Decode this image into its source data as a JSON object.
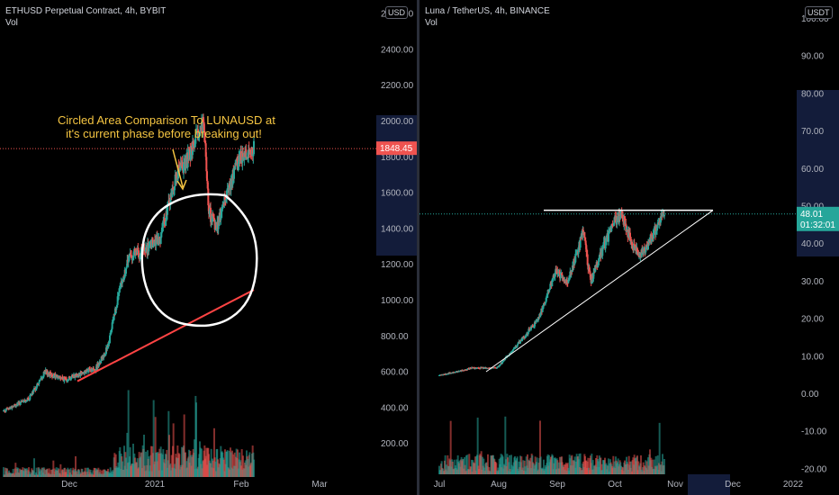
{
  "panels": [
    {
      "symbol_line": "ETHUSD Perpetual Contract, 4h, BYBIT",
      "volume_label": "Vol",
      "currency": "USD",
      "annotation_lines": [
        "Circled Area Comparison To LUNAUSD at",
        "it's current phase before breaking out!"
      ],
      "colors": {
        "annotation": "#f5c542",
        "trendline": "#ff4444",
        "circle": "#ffffff",
        "up": "#26a69a",
        "down": "#ef5350"
      }
    },
    {
      "symbol_line": "Luna / TetherUS, 4h, BINANCE",
      "volume_label": "Vol",
      "currency": "USDT",
      "colors": {
        "resistance": "#ffffff",
        "support": "#ffffff",
        "up": "#26a69a",
        "down": "#ef5350"
      }
    }
  ],
  "chart_data": [
    {
      "type": "candlestick",
      "title": "ETHUSD Perpetual Contract, 4h, BYBIT",
      "y_tick_labels": [
        "200.00",
        "400.00",
        "600.00",
        "800.00",
        "1000.00",
        "1200.00",
        "1400.00",
        "1600.00",
        "1800.00",
        "2000.00",
        "2200.00",
        "2400.00",
        "2600.00"
      ],
      "x_tick_labels": [
        "Dec",
        "2021",
        "Feb",
        "Mar"
      ],
      "ylim": [
        0,
        2700
      ],
      "last_price": 1848.45,
      "last_price_label": "1848.45",
      "close_path": [
        {
          "date": "2020-11-01",
          "close": 385
        },
        {
          "date": "2020-11-15",
          "close": 450
        },
        {
          "date": "2020-11-24",
          "close": 600
        },
        {
          "date": "2020-12-05",
          "close": 560
        },
        {
          "date": "2020-12-15",
          "close": 600
        },
        {
          "date": "2020-12-22",
          "close": 620
        },
        {
          "date": "2020-12-29",
          "close": 740
        },
        {
          "date": "2021-01-03",
          "close": 1000
        },
        {
          "date": "2021-01-10",
          "close": 1250
        },
        {
          "date": "2021-01-19",
          "close": 1280
        },
        {
          "date": "2021-01-27",
          "close": 1350
        },
        {
          "date": "2021-02-05",
          "close": 1700
        },
        {
          "date": "2021-02-12",
          "close": 1800
        },
        {
          "date": "2021-02-20",
          "close": 2000
        },
        {
          "date": "2021-02-23",
          "close": 1500
        },
        {
          "date": "2021-02-27",
          "close": 1400
        },
        {
          "date": "2021-03-05",
          "close": 1600
        },
        {
          "date": "2021-03-12",
          "close": 1800
        },
        {
          "date": "2021-03-20",
          "close": 1848.45
        }
      ],
      "trendline_from": {
        "date": "2020-12-12",
        "price": 550
      },
      "trendline_to": {
        "date": "2021-03-20",
        "price": 1060
      }
    },
    {
      "type": "candlestick",
      "title": "Luna / TetherUS, 4h, BINANCE",
      "y_tick_labels": [
        "-20.00",
        "-10.00",
        "0.00",
        "10.00",
        "20.00",
        "30.00",
        "40.00",
        "50.00",
        "60.00",
        "70.00",
        "80.00",
        "90.00",
        "100.00"
      ],
      "x_tick_labels": [
        "Jul",
        "Aug",
        "Sep",
        "Oct",
        "Nov",
        "Dec",
        "2022"
      ],
      "ylim": [
        -21,
        103
      ],
      "last_price": 48.01,
      "last_price_label": "48.01",
      "countdown": "01:32:01",
      "close_path": [
        {
          "date": "2021-07-01",
          "close": 5
        },
        {
          "date": "2021-07-20",
          "close": 7
        },
        {
          "date": "2021-08-02",
          "close": 7
        },
        {
          "date": "2021-08-13",
          "close": 13
        },
        {
          "date": "2021-08-25",
          "close": 20
        },
        {
          "date": "2021-09-04",
          "close": 33
        },
        {
          "date": "2021-09-10",
          "close": 30
        },
        {
          "date": "2021-09-15",
          "close": 37
        },
        {
          "date": "2021-09-19",
          "close": 43
        },
        {
          "date": "2021-09-23",
          "close": 30
        },
        {
          "date": "2021-10-01",
          "close": 40
        },
        {
          "date": "2021-10-06",
          "close": 46
        },
        {
          "date": "2021-10-10",
          "close": 48
        },
        {
          "date": "2021-10-17",
          "close": 39
        },
        {
          "date": "2021-10-22",
          "close": 37
        },
        {
          "date": "2021-10-29",
          "close": 44
        },
        {
          "date": "2021-11-03",
          "close": 48.01
        }
      ],
      "resistance_line": {
        "price": 49,
        "from_date": "2021-08-28",
        "to_date": "2021-11-30"
      },
      "support_line": {
        "from": {
          "date": "2021-07-27",
          "price": 6
        },
        "to": {
          "date": "2021-11-30",
          "price": 49
        }
      }
    }
  ]
}
